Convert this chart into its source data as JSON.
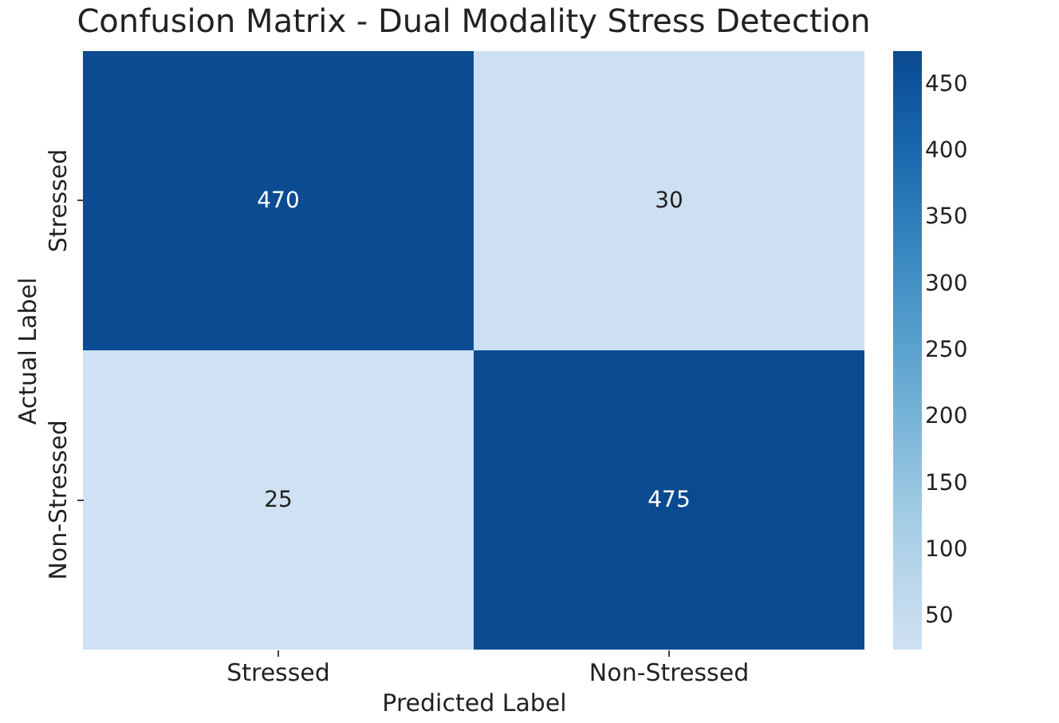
{
  "chart_data": {
    "type": "heatmap",
    "title": "Confusion Matrix - Dual Modality Stress Detection",
    "xlabel": "Predicted Label",
    "ylabel": "Actual Label",
    "categories": [
      "Stressed",
      "Non-Stressed"
    ],
    "y_categories": [
      "Stressed",
      "Non-Stressed"
    ],
    "cells": [
      [
        470,
        30
      ],
      [
        25,
        475
      ]
    ],
    "data_labels": true,
    "clim": [
      25,
      475
    ],
    "cticks": [
      50,
      100,
      150,
      200,
      250,
      300,
      350,
      400,
      450
    ]
  }
}
